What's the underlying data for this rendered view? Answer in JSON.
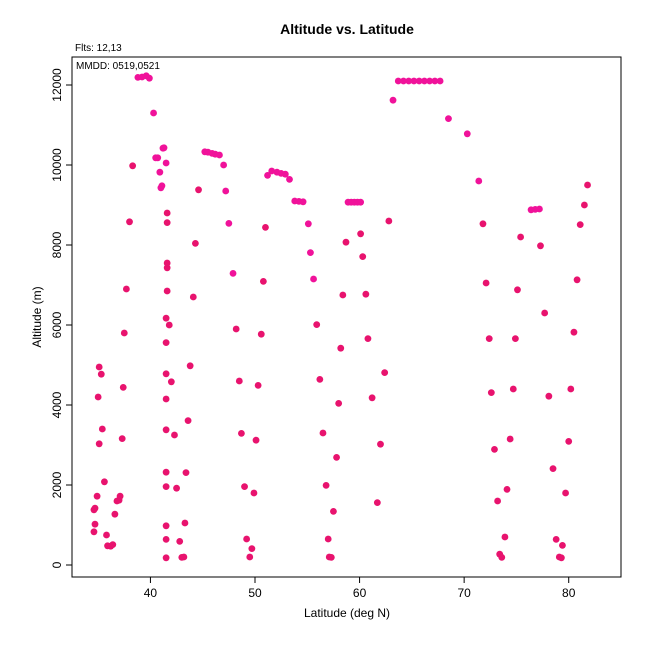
{
  "chart_data": {
    "type": "scatter",
    "title": "Altitude vs. Latitude",
    "xlabel": "Latitude (deg N)",
    "ylabel": "Altitude (m)",
    "xlim": [
      32.5,
      85
    ],
    "ylim": [
      -300,
      12700
    ],
    "xticks": [
      40,
      50,
      60,
      70,
      80
    ],
    "yticks": [
      0,
      2000,
      4000,
      6000,
      8000,
      10000,
      12000
    ],
    "grid": false,
    "annotations": {
      "flts": "Flts: 12,13",
      "mmdd": "MMDD: 0519,0521"
    },
    "series": [
      {
        "color": "#e8136e",
        "points": [
          [
            34.6,
            830
          ],
          [
            34.7,
            1020
          ],
          [
            34.6,
            1380
          ],
          [
            34.7,
            1420
          ],
          [
            34.9,
            1720
          ],
          [
            35.1,
            3030
          ],
          [
            35.0,
            4200
          ],
          [
            35.1,
            4950
          ],
          [
            35.3,
            4770
          ],
          [
            35.4,
            3400
          ],
          [
            35.6,
            2080
          ],
          [
            35.8,
            750
          ],
          [
            35.9,
            480
          ],
          [
            36.2,
            470
          ],
          [
            36.4,
            510
          ],
          [
            36.6,
            1270
          ],
          [
            36.8,
            1600
          ],
          [
            37.0,
            1620
          ],
          [
            37.1,
            1720
          ],
          [
            37.3,
            3160
          ],
          [
            37.4,
            4440
          ],
          [
            37.5,
            5800
          ],
          [
            37.7,
            6900
          ],
          [
            38.0,
            8580
          ],
          [
            38.3,
            9980
          ],
          [
            41.5,
            180
          ],
          [
            41.5,
            640
          ],
          [
            41.5,
            980
          ],
          [
            41.5,
            1960
          ],
          [
            41.5,
            2320
          ],
          [
            41.5,
            3380
          ],
          [
            41.5,
            4150
          ],
          [
            41.5,
            4780
          ],
          [
            41.5,
            5560
          ],
          [
            41.5,
            6170
          ],
          [
            41.6,
            6850
          ],
          [
            41.6,
            7430
          ],
          [
            41.6,
            7550
          ],
          [
            41.6,
            8560
          ],
          [
            41.6,
            8800
          ],
          [
            41.8,
            6000
          ],
          [
            42.0,
            4580
          ],
          [
            42.3,
            3250
          ],
          [
            42.5,
            1920
          ],
          [
            42.8,
            590
          ],
          [
            43.0,
            190
          ],
          [
            43.2,
            200
          ],
          [
            43.3,
            1050
          ],
          [
            43.4,
            2310
          ],
          [
            43.6,
            3610
          ],
          [
            43.8,
            4980
          ],
          [
            44.1,
            6700
          ],
          [
            44.3,
            8040
          ],
          [
            44.6,
            9380
          ],
          [
            48.2,
            5900
          ],
          [
            48.5,
            4600
          ],
          [
            48.7,
            3290
          ],
          [
            49.0,
            1960
          ],
          [
            49.2,
            650
          ],
          [
            49.5,
            200
          ],
          [
            49.7,
            410
          ],
          [
            49.9,
            1800
          ],
          [
            50.1,
            3120
          ],
          [
            50.3,
            4490
          ],
          [
            50.6,
            5770
          ],
          [
            50.8,
            7090
          ],
          [
            51.0,
            8440
          ],
          [
            55.9,
            6010
          ],
          [
            56.2,
            4640
          ],
          [
            56.5,
            3300
          ],
          [
            56.8,
            1990
          ],
          [
            57.0,
            650
          ],
          [
            57.1,
            200
          ],
          [
            57.3,
            190
          ],
          [
            57.5,
            1340
          ],
          [
            57.8,
            2690
          ],
          [
            58.0,
            4040
          ],
          [
            58.2,
            5420
          ],
          [
            58.4,
            6750
          ],
          [
            58.7,
            8070
          ],
          [
            60.1,
            8280
          ],
          [
            60.3,
            7710
          ],
          [
            60.6,
            6770
          ],
          [
            60.8,
            5660
          ],
          [
            61.2,
            4180
          ],
          [
            61.7,
            1560
          ],
          [
            62.0,
            3020
          ],
          [
            62.4,
            4810
          ],
          [
            62.8,
            8600
          ],
          [
            71.8,
            8530
          ],
          [
            72.1,
            7050
          ],
          [
            72.4,
            5660
          ],
          [
            72.6,
            4310
          ],
          [
            72.9,
            2890
          ],
          [
            73.2,
            1600
          ],
          [
            73.4,
            270
          ],
          [
            73.6,
            190
          ],
          [
            73.9,
            700
          ],
          [
            74.1,
            1890
          ],
          [
            74.4,
            3150
          ],
          [
            74.7,
            4400
          ],
          [
            74.9,
            5660
          ],
          [
            75.1,
            6880
          ],
          [
            75.4,
            8200
          ],
          [
            77.3,
            7980
          ],
          [
            77.7,
            6300
          ],
          [
            78.1,
            4220
          ],
          [
            78.5,
            2410
          ],
          [
            78.8,
            640
          ],
          [
            79.1,
            200
          ],
          [
            79.3,
            180
          ],
          [
            79.4,
            490
          ],
          [
            79.7,
            1800
          ],
          [
            80.0,
            3090
          ],
          [
            80.2,
            4400
          ],
          [
            80.5,
            5820
          ],
          [
            80.8,
            7130
          ],
          [
            81.1,
            8510
          ],
          [
            81.5,
            9000
          ],
          [
            81.8,
            9500
          ]
        ]
      },
      {
        "color": "#f0129a",
        "points": [
          [
            38.8,
            12190
          ],
          [
            39.2,
            12200
          ],
          [
            39.6,
            12230
          ],
          [
            39.9,
            12170
          ],
          [
            40.3,
            11300
          ],
          [
            40.5,
            10180
          ],
          [
            40.7,
            10180
          ],
          [
            40.9,
            9820
          ],
          [
            41.1,
            9480
          ],
          [
            41.0,
            9430
          ],
          [
            41.2,
            10420
          ],
          [
            41.3,
            10430
          ],
          [
            41.5,
            10050
          ],
          [
            45.2,
            10330
          ],
          [
            45.5,
            10320
          ],
          [
            45.9,
            10290
          ],
          [
            46.2,
            10270
          ],
          [
            46.6,
            10250
          ],
          [
            47.0,
            10000
          ],
          [
            47.2,
            9350
          ],
          [
            47.5,
            8540
          ],
          [
            47.9,
            7290
          ],
          [
            51.2,
            9740
          ],
          [
            51.6,
            9850
          ],
          [
            52.1,
            9820
          ],
          [
            52.5,
            9790
          ],
          [
            52.9,
            9770
          ],
          [
            53.3,
            9640
          ],
          [
            53.8,
            9100
          ],
          [
            54.2,
            9090
          ],
          [
            54.6,
            9080
          ],
          [
            55.1,
            8530
          ],
          [
            55.3,
            7810
          ],
          [
            55.6,
            7150
          ],
          [
            58.9,
            9070
          ],
          [
            59.2,
            9070
          ],
          [
            59.5,
            9070
          ],
          [
            59.8,
            9070
          ],
          [
            60.1,
            9070
          ],
          [
            63.2,
            11620
          ],
          [
            63.7,
            12100
          ],
          [
            64.2,
            12100
          ],
          [
            64.7,
            12100
          ],
          [
            65.2,
            12100
          ],
          [
            65.7,
            12100
          ],
          [
            66.2,
            12100
          ],
          [
            66.7,
            12100
          ],
          [
            67.2,
            12100
          ],
          [
            67.7,
            12100
          ],
          [
            68.5,
            11160
          ],
          [
            70.3,
            10780
          ],
          [
            71.4,
            9600
          ],
          [
            76.4,
            8880
          ],
          [
            76.8,
            8890
          ],
          [
            77.2,
            8900
          ]
        ]
      }
    ]
  }
}
